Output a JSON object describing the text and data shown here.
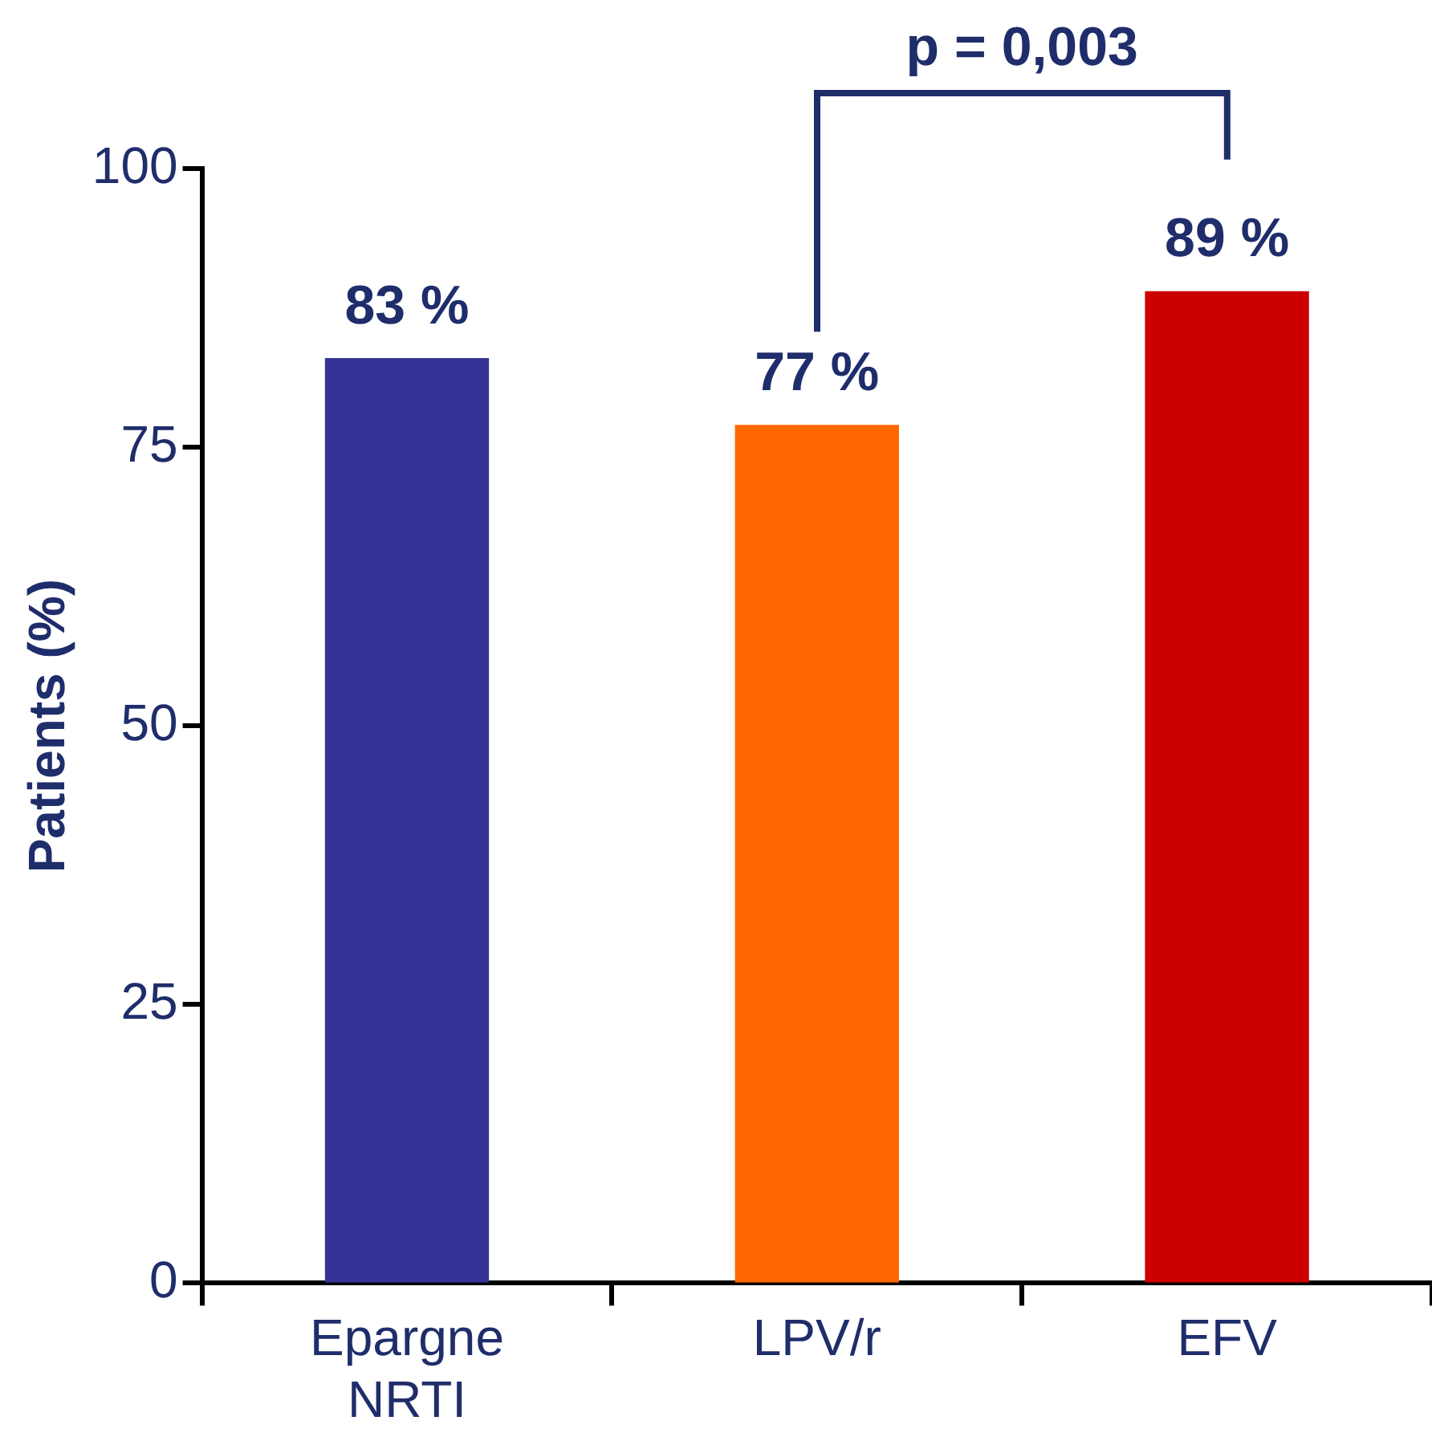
{
  "chart_data": {
    "type": "bar",
    "ylabel": "Patients (%)",
    "categories": [
      "Epargne NRTI",
      "LPV/r",
      "EFV"
    ],
    "values": [
      83,
      77,
      89
    ],
    "colors": [
      "#353496",
      "#ff6600",
      "#cc0000"
    ],
    "value_labels": [
      "83 %",
      "77 %",
      "89 %"
    ],
    "ylim": [
      0,
      100
    ],
    "yticks": [
      0,
      25,
      50,
      75,
      100
    ],
    "grid": false,
    "legend": false,
    "annotations": [
      "p = 0,003"
    ]
  }
}
